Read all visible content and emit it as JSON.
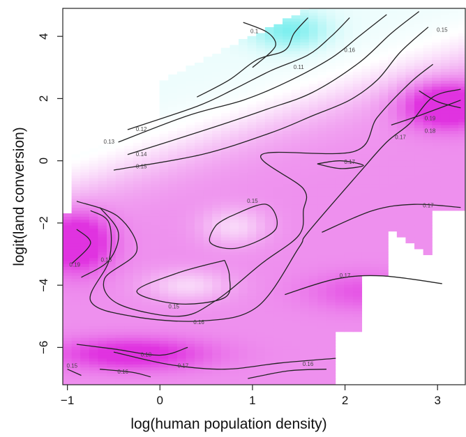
{
  "chart_data": {
    "type": "heatmap",
    "title": "",
    "xlabel": "log(human population density)",
    "ylabel": "logit(land conversion)",
    "xlim": [
      -1.05,
      3.3
    ],
    "ylim": [
      -7.2,
      4.9
    ],
    "x_ticks": [
      {
        "value": -1,
        "label": "−1"
      },
      {
        "value": 0,
        "label": "0"
      },
      {
        "value": 1,
        "label": "1"
      },
      {
        "value": 2,
        "label": "2"
      },
      {
        "value": 3,
        "label": "3"
      }
    ],
    "y_ticks": [
      {
        "value": -6,
        "label": "−6"
      },
      {
        "value": -4,
        "label": "−4"
      },
      {
        "value": -2,
        "label": "−2"
      },
      {
        "value": 0,
        "label": "0"
      },
      {
        "value": 2,
        "label": "2"
      },
      {
        "value": 4,
        "label": "4"
      }
    ],
    "colors": {
      "low": "#33e6e6",
      "mid": "#ffffff",
      "high": "#e033e0",
      "contour": "#222222"
    },
    "value_range": [
      0.1,
      0.19
    ],
    "contours": [
      {
        "level": "0.1",
        "points": [
          [
            0.9,
            4.45
          ],
          [
            1.15,
            4.15
          ],
          [
            1.25,
            3.8
          ],
          [
            1.2,
            3.5
          ],
          [
            1.0,
            3.0
          ]
        ]
      },
      {
        "level": "0.11",
        "points": [
          [
            1.6,
            4.6
          ],
          [
            1.45,
            4.1
          ],
          [
            1.35,
            3.55
          ],
          [
            1.05,
            3.25
          ],
          [
            0.75,
            2.6
          ],
          [
            0.4,
            2.05
          ]
        ]
      },
      {
        "level": "0.12",
        "points": [
          [
            2.05,
            4.6
          ],
          [
            1.85,
            4.0
          ],
          [
            1.6,
            3.4
          ],
          [
            1.2,
            2.9
          ],
          [
            0.8,
            2.3
          ],
          [
            0.4,
            1.75
          ],
          [
            -0.35,
            1.0
          ]
        ]
      },
      {
        "level": "0.13",
        "points": [
          [
            2.45,
            4.7
          ],
          [
            2.15,
            4.0
          ],
          [
            1.85,
            3.3
          ],
          [
            1.35,
            2.5
          ],
          [
            0.9,
            1.95
          ],
          [
            0.3,
            1.45
          ],
          [
            -0.45,
            0.6
          ]
        ]
      },
      {
        "level": "0.14",
        "points": [
          [
            2.8,
            4.8
          ],
          [
            2.5,
            4.1
          ],
          [
            2.15,
            3.15
          ],
          [
            1.65,
            2.2
          ],
          [
            1.15,
            1.65
          ],
          [
            0.5,
            1.0
          ],
          [
            -0.35,
            0.2
          ]
        ]
      },
      {
        "level": "0.15",
        "points": [
          [
            2.9,
            4.3
          ],
          [
            2.6,
            3.5
          ],
          [
            2.35,
            2.6
          ],
          [
            2.05,
            1.95
          ],
          [
            1.65,
            1.45
          ],
          [
            1.2,
            0.9
          ],
          [
            0.45,
            0.2
          ],
          [
            -0.5,
            -0.3
          ]
        ]
      },
      {
        "level": "0.15",
        "points": [
          [
            0.75,
            -1.8
          ],
          [
            1.15,
            -1.4
          ],
          [
            1.25,
            -2.2
          ],
          [
            0.85,
            -2.8
          ],
          [
            0.55,
            -2.65
          ],
          [
            0.6,
            -2.1
          ],
          [
            0.75,
            -1.8
          ]
        ]
      },
      {
        "level": "0.15",
        "points": [
          [
            0.7,
            -3.2
          ],
          [
            0.2,
            -3.6
          ],
          [
            -0.25,
            -4.2
          ],
          [
            0.2,
            -4.6
          ],
          [
            0.7,
            -4.4
          ],
          [
            0.75,
            -3.7
          ],
          [
            0.7,
            -3.2
          ]
        ]
      },
      {
        "level": "0.16",
        "points": [
          [
            2.95,
            3.1
          ],
          [
            2.7,
            2.5
          ],
          [
            2.35,
            1.4
          ],
          [
            2.1,
            0.3
          ],
          [
            1.1,
            0.2
          ],
          [
            1.55,
            -0.9
          ],
          [
            1.55,
            -1.6
          ],
          [
            1.5,
            -2.4
          ],
          [
            1.1,
            -3.3
          ],
          [
            0.6,
            -4.5
          ],
          [
            0.2,
            -5.0
          ],
          [
            -0.45,
            -4.6
          ],
          [
            -0.6,
            -3.8
          ],
          [
            -0.25,
            -2.9
          ],
          [
            -0.45,
            -1.8
          ],
          [
            -0.9,
            -1.3
          ]
        ]
      },
      {
        "level": "0.17",
        "points": [
          [
            3.25,
            2.3
          ],
          [
            2.95,
            2.05
          ],
          [
            2.7,
            1.2
          ],
          [
            2.45,
            0.6
          ],
          [
            2.15,
            -0.4
          ],
          [
            1.6,
            -2.3
          ],
          [
            1.5,
            -2.8
          ],
          [
            1.05,
            -4.7
          ],
          [
            0.45,
            -5.15
          ],
          [
            -0.3,
            -5.0
          ],
          [
            -0.75,
            -4.5
          ],
          [
            -0.55,
            -3.2
          ],
          [
            -0.55,
            -2.0
          ],
          [
            -0.75,
            -1.6
          ]
        ]
      },
      {
        "level": "0.17",
        "points": [
          [
            1.7,
            -0.1
          ],
          [
            1.95,
            0.0
          ],
          [
            2.2,
            -0.15
          ],
          [
            1.95,
            -0.25
          ],
          [
            1.7,
            -0.1
          ]
        ]
      },
      {
        "level": "0.17",
        "points": [
          [
            1.75,
            -2.3
          ],
          [
            2.3,
            -1.6
          ],
          [
            2.75,
            -1.4
          ],
          [
            3.25,
            -1.5
          ]
        ]
      },
      {
        "level": "0.17",
        "points": [
          [
            1.35,
            -4.3
          ],
          [
            1.9,
            -3.8
          ],
          [
            2.4,
            -3.7
          ],
          [
            3.05,
            -3.95
          ]
        ]
      },
      {
        "level": "0.17",
        "points": [
          [
            -0.5,
            -6.15
          ],
          [
            0.1,
            -6.55
          ],
          [
            0.7,
            -6.7
          ],
          [
            1.3,
            -6.5
          ],
          [
            1.9,
            -6.35
          ]
        ]
      },
      {
        "level": "0.18",
        "points": [
          [
            3.25,
            1.95
          ],
          [
            2.8,
            1.45
          ],
          [
            2.5,
            1.15
          ]
        ]
      },
      {
        "level": "0.18",
        "points": [
          [
            -0.65,
            -1.5
          ],
          [
            -0.45,
            -2.3
          ],
          [
            -0.55,
            -3.2
          ],
          [
            -0.85,
            -3.75
          ]
        ]
      },
      {
        "level": "0.18",
        "points": [
          [
            -0.9,
            -5.9
          ],
          [
            -0.5,
            -6.05
          ],
          [
            0.0,
            -6.25
          ],
          [
            0.3,
            -6.0
          ]
        ]
      },
      {
        "level": "0.19",
        "points": [
          [
            2.8,
            2.25
          ],
          [
            3.0,
            1.9
          ],
          [
            3.25,
            1.7
          ]
        ]
      },
      {
        "level": "0.19",
        "points": [
          [
            -0.9,
            -2.2
          ],
          [
            -0.75,
            -2.65
          ],
          [
            -0.95,
            -3.3
          ]
        ]
      },
      {
        "level": "0.15",
        "points": [
          [
            -1.0,
            -6.7
          ],
          [
            -0.85,
            -6.9
          ]
        ]
      },
      {
        "level": "0.16",
        "points": [
          [
            -0.65,
            -6.7
          ],
          [
            -0.3,
            -6.8
          ],
          [
            -0.1,
            -6.95
          ]
        ]
      },
      {
        "level": "0.16",
        "points": [
          [
            0.95,
            -7.0
          ],
          [
            1.4,
            -6.75
          ],
          [
            1.8,
            -6.7
          ]
        ]
      }
    ],
    "contour_labels": [
      {
        "text": "0.1",
        "x": 1.02,
        "y": 4.15
      },
      {
        "text": "0.11",
        "x": 1.5,
        "y": 3.0
      },
      {
        "text": "0.12",
        "x": -0.2,
        "y": 1.0
      },
      {
        "text": "0.13",
        "x": -0.55,
        "y": 0.6
      },
      {
        "text": "0.14",
        "x": -0.2,
        "y": 0.2
      },
      {
        "text": "0.15",
        "x": -0.2,
        "y": -0.2
      },
      {
        "text": "0.15",
        "x": 3.05,
        "y": 4.2
      },
      {
        "text": "0.15",
        "x": 1.0,
        "y": -1.3
      },
      {
        "text": "0.15",
        "x": 0.15,
        "y": -4.7
      },
      {
        "text": "0.15",
        "x": -0.95,
        "y": -6.6
      },
      {
        "text": "0.16",
        "x": 0.42,
        "y": -5.2
      },
      {
        "text": "0.16",
        "x": 2.05,
        "y": 3.55
      },
      {
        "text": "0.16",
        "x": -0.4,
        "y": -6.8
      },
      {
        "text": "0.16",
        "x": 1.6,
        "y": -6.55
      },
      {
        "text": "0.17",
        "x": 2.05,
        "y": -0.05
      },
      {
        "text": "0.17",
        "x": 2.9,
        "y": -1.45
      },
      {
        "text": "0.17",
        "x": 2.0,
        "y": -3.7
      },
      {
        "text": "0.17",
        "x": 2.6,
        "y": 0.75
      },
      {
        "text": "0.17",
        "x": 0.25,
        "y": -6.6
      },
      {
        "text": "0.18",
        "x": 2.92,
        "y": 0.95
      },
      {
        "text": "0.18",
        "x": -0.58,
        "y": -3.2
      },
      {
        "text": "0.18",
        "x": -0.15,
        "y": -6.25
      },
      {
        "text": "0.19",
        "x": 2.92,
        "y": 1.35
      },
      {
        "text": "0.19",
        "x": -0.92,
        "y": -3.35
      }
    ]
  }
}
